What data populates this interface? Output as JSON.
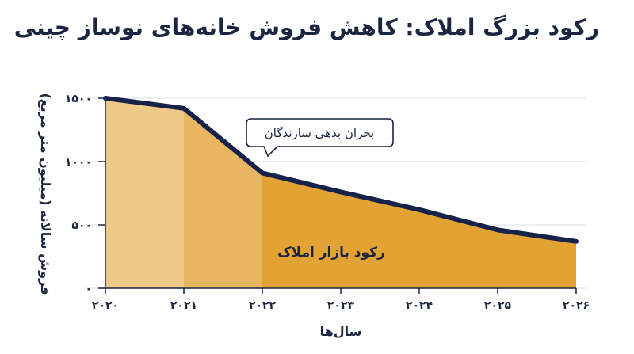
{
  "title": "رکود بزرگ املاک: کاهش فروش خانه‌های نوساز چینی",
  "chart_data": {
    "type": "area",
    "x": [
      "۲۰۲۰",
      "۲۰۲۱",
      "۲۰۲۲",
      "۲۰۲۳",
      "۲۰۲۴",
      "۲۰۲۵",
      "۲۰۲۶"
    ],
    "values": [
      1500,
      1420,
      910,
      760,
      620,
      460,
      370
    ],
    "ylim": [
      0,
      1500
    ],
    "yticks": [
      0,
      500,
      1000,
      1500
    ],
    "ytick_labels": [
      "۰",
      "۵۰۰",
      "۱۰۰۰",
      "۱۵۰۰"
    ],
    "xlabel": "سال‌ها",
    "ylabel": "فروش سالانه (میلیون متر مربع)",
    "grid": true,
    "annotation": "بحران بدهی سازندگان",
    "region_label": "رکود بازار املاک",
    "colors": {
      "segment_1": "#eec987",
      "segment_2": "#e8b660",
      "segment_3": "#e3a234",
      "line": "#17224a",
      "text": "#1b2440"
    }
  }
}
